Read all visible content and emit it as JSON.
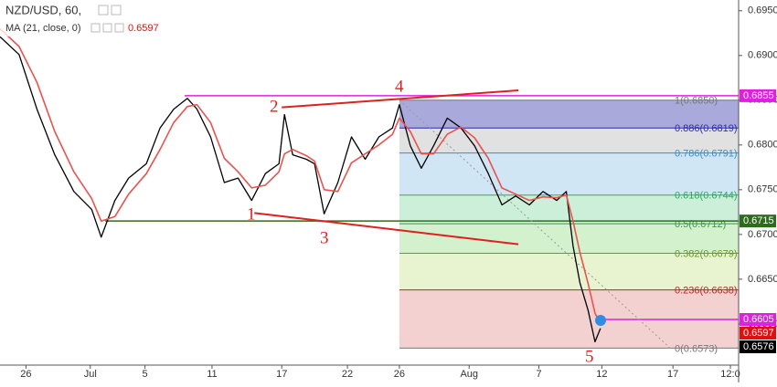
{
  "chart_data": {
    "type": "line",
    "title": "NZD/USD, 60,",
    "indicator": "MA (21, close, 0)",
    "indicator_value": "0.6597",
    "xlim": [
      -1.9,
      52.1
    ],
    "ylim": [
      0.6554,
      0.6962
    ],
    "xticks": [
      {
        "value": 0,
        "label": "26"
      },
      {
        "value": 4.7,
        "label": "Jul"
      },
      {
        "value": 8.7,
        "label": "5"
      },
      {
        "value": 13.6,
        "label": "11"
      },
      {
        "value": 18.7,
        "label": "17"
      },
      {
        "value": 23.5,
        "label": "22"
      },
      {
        "value": 27.3,
        "label": "26"
      },
      {
        "value": 32.4,
        "label": "Aug"
      },
      {
        "value": 37.5,
        "label": "7"
      },
      {
        "value": 42.1,
        "label": "12"
      },
      {
        "value": 47.3,
        "label": "17"
      },
      {
        "value": 51.5,
        "label": "12:0"
      }
    ],
    "yticks": [
      {
        "value": 0.695,
        "label": "0.6950"
      },
      {
        "value": 0.69,
        "label": "0.6900"
      },
      {
        "value": 0.685,
        "label": "0.6850"
      },
      {
        "value": 0.68,
        "label": "0.6800"
      },
      {
        "value": 0.675,
        "label": "0.6750"
      },
      {
        "value": 0.67,
        "label": "0.6700"
      },
      {
        "value": 0.665,
        "label": "0.6650"
      },
      {
        "value": 0.66,
        "label": "0.6600"
      }
    ],
    "x": [
      -1.9,
      -0.5,
      0.8,
      2.1,
      3.5,
      4.8,
      5.5,
      6.5,
      7.5,
      8.8,
      9.8,
      10.8,
      11.8,
      12.5,
      13.5,
      14.5,
      15.5,
      16.5,
      17.5,
      18.5,
      18.9,
      19.5,
      20.5,
      21.1,
      21.8,
      22.8,
      23.8,
      24.8,
      25.8,
      26.8,
      27.3,
      28.1,
      28.9,
      29.8,
      30.8,
      31.8,
      32.8,
      33.8,
      34.8,
      35.8,
      36.8,
      37.8,
      38.8,
      39.5,
      40,
      40.5,
      41.1,
      41.6,
      42
    ],
    "series": [
      {
        "name": "NZD/USD",
        "color": "#000000",
        "values": [
          0.6921,
          0.6901,
          0.684,
          0.6789,
          0.6748,
          0.6728,
          0.6697,
          0.6738,
          0.6763,
          0.6779,
          0.6819,
          0.684,
          0.6852,
          0.684,
          0.6809,
          0.6758,
          0.6763,
          0.6738,
          0.6768,
          0.6779,
          0.6834,
          0.6789,
          0.6784,
          0.6779,
          0.6723,
          0.6758,
          0.6809,
          0.6784,
          0.6809,
          0.6819,
          0.6845,
          0.6799,
          0.6774,
          0.6799,
          0.683,
          0.6819,
          0.6799,
          0.6768,
          0.6733,
          0.6743,
          0.6733,
          0.6748,
          0.6738,
          0.6748,
          0.6687,
          0.6646,
          0.6615,
          0.658,
          0.6595
        ]
      },
      {
        "name": "MA",
        "color": "#e8534f",
        "values": [
          0.693,
          0.691,
          0.687,
          0.6815,
          0.677,
          0.674,
          0.6715,
          0.672,
          0.6745,
          0.6768,
          0.6795,
          0.6825,
          0.6843,
          0.6845,
          0.6825,
          0.6785,
          0.677,
          0.6752,
          0.6755,
          0.677,
          0.679,
          0.6795,
          0.6788,
          0.6782,
          0.675,
          0.6748,
          0.678,
          0.679,
          0.68,
          0.6812,
          0.683,
          0.6815,
          0.679,
          0.679,
          0.6812,
          0.682,
          0.6808,
          0.6785,
          0.6752,
          0.6745,
          0.6738,
          0.6742,
          0.6741,
          0.6744,
          0.6715,
          0.668,
          0.6645,
          0.6612,
          0.66
        ]
      }
    ],
    "hlines": [
      {
        "value": 0.6855,
        "from": 11.6,
        "color": "#e020e0"
      },
      {
        "value": 0.6715,
        "from": 5.8,
        "color": "#2e6b1e"
      },
      {
        "value": 0.6605,
        "from": 41.8,
        "color": "#e020e0"
      }
    ],
    "trendlines": [
      {
        "x": [
          16.7,
          36
        ],
        "y": [
          0.6724,
          0.6689
        ],
        "color": "#e02020"
      },
      {
        "x": [
          18.7,
          36
        ],
        "y": [
          0.6842,
          0.6861
        ],
        "color": "#e02020"
      },
      {
        "x": [
          27.3,
          47.1
        ],
        "y": [
          0.685,
          0.6573
        ],
        "color": "#999999",
        "dashed": true
      }
    ],
    "fib": {
      "from": 27.3,
      "levels": [
        {
          "value": 0.685,
          "label": "1(0.6850)",
          "color": "#777777",
          "fill": "#9a9ad6"
        },
        {
          "value": 0.6819,
          "label": "0.886(0.6819)",
          "color": "#2b2bb0",
          "fill": "#dcdcdc"
        },
        {
          "value": 0.6791,
          "label": "0.786(0.6791)",
          "color": "#3b8ec4",
          "fill": "#c8e2f2"
        },
        {
          "value": 0.6744,
          "label": "0.618(0.6744)",
          "color": "#2ea860",
          "fill": "#c2ecd2"
        },
        {
          "value": 0.6712,
          "label": "0.5(0.6712)",
          "color": "#3c9a3c",
          "fill": "#cbeec4"
        },
        {
          "value": 0.6679,
          "label": "0.382(0.6679)",
          "color": "#6a9a2a",
          "fill": "#e4f1c8"
        },
        {
          "value": 0.6638,
          "label": "0.236(0.6638)",
          "color": "#b02a2a",
          "fill": "#f2c9c9"
        },
        {
          "value": 0.6573,
          "label": "0(0.6573)",
          "color": "#777777",
          "fill": null
        }
      ]
    },
    "price_labels": [
      {
        "value": 0.6855,
        "color": "#e020e0"
      },
      {
        "value": 0.6715,
        "color": "#2e6b1e"
      },
      {
        "value": 0.6605,
        "color": "#e020e0"
      },
      {
        "value": 0.6597,
        "color": "#e01010"
      },
      {
        "value": 0.6576,
        "color": "#000000"
      }
    ],
    "waves": [
      "1",
      "2",
      "3",
      "4",
      "5"
    ]
  }
}
